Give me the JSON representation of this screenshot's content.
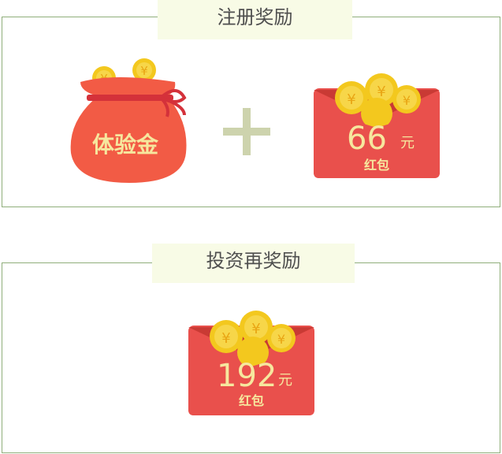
{
  "sections": [
    {
      "title": "注册奖励",
      "bag": {
        "label": "体验金",
        "icon": "money-bag-icon"
      },
      "plus": "+",
      "envelope": {
        "amount": "66",
        "unit": "元",
        "label": "红包"
      }
    },
    {
      "title": "投资再奖励",
      "envelope": {
        "amount": "192",
        "unit": "元",
        "label": "红包"
      }
    }
  ],
  "coin_symbol": "¥",
  "colors": {
    "border": "#8fae7a",
    "title_bg": "#f8fbe6",
    "envelope": "#e9504c",
    "bag": "#f25b45",
    "coin": "#f3c81e",
    "gold_text": "#f6e79e",
    "plus": "#cdd3ad"
  }
}
